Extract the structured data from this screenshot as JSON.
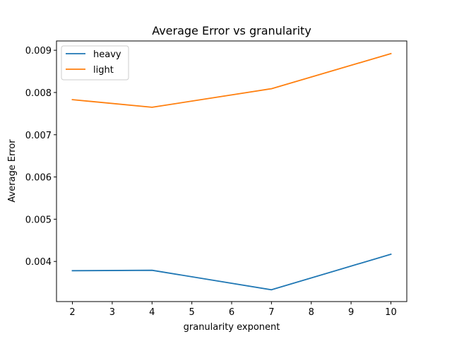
{
  "chart_data": {
    "type": "line",
    "title": "Average Error vs granularity",
    "xlabel": "granularity exponent",
    "ylabel": "Average Error",
    "x": [
      2,
      4,
      7,
      10
    ],
    "series": [
      {
        "name": "heavy",
        "color": "#1f77b4",
        "values": [
          0.00378,
          0.00379,
          0.00333,
          0.00417
        ]
      },
      {
        "name": "light",
        "color": "#ff7f0e",
        "values": [
          0.00783,
          0.00765,
          0.00809,
          0.00892
        ]
      }
    ],
    "xlim": [
      1.6,
      10.4
    ],
    "ylim": [
      0.00305,
      0.00922
    ],
    "xticks": [
      2,
      3,
      4,
      5,
      6,
      7,
      8,
      9,
      10
    ],
    "xtick_labels": [
      "2",
      "3",
      "4",
      "5",
      "6",
      "7",
      "8",
      "9",
      "10"
    ],
    "yticks": [
      0.004,
      0.005,
      0.006,
      0.007,
      0.008,
      0.009
    ],
    "ytick_labels": [
      "0.004",
      "0.005",
      "0.006",
      "0.007",
      "0.008",
      "0.009"
    ],
    "grid": false,
    "legend_position": "top-left"
  }
}
